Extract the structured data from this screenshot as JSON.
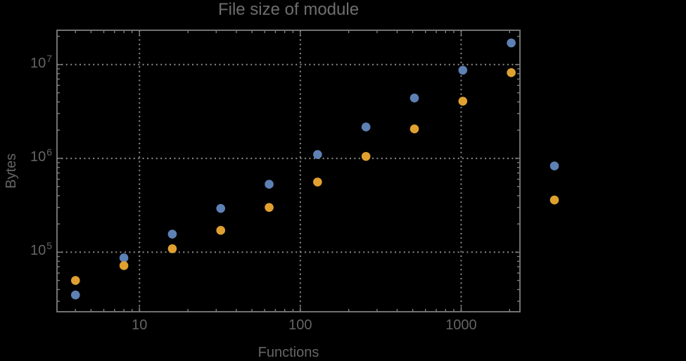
{
  "window": {
    "background": "#000000"
  },
  "chart_data": {
    "type": "scatter",
    "title": "File size of module",
    "xlabel": "Functions",
    "ylabel": "Bytes",
    "x_scale": "log",
    "y_scale": "log",
    "xlim": [
      3.07,
      2320
    ],
    "ylim": [
      23200,
      23200000
    ],
    "grid": true,
    "grid_style": "dotted",
    "legend": false,
    "x_ticks": [
      {
        "value": 10,
        "label": "10"
      },
      {
        "value": 100,
        "label": "100"
      },
      {
        "value": 1000,
        "label": "1000"
      }
    ],
    "y_ticks": [
      {
        "value": 100000,
        "base": "10",
        "exponent": "5"
      },
      {
        "value": 1000000,
        "base": "10",
        "exponent": "6"
      },
      {
        "value": 10000000,
        "base": "10",
        "exponent": "7"
      }
    ],
    "series": [
      {
        "name": "series-1-blue",
        "color": "#5e81b5",
        "points": [
          [
            4,
            35000
          ],
          [
            8,
            87000
          ],
          [
            16,
            156000
          ],
          [
            32,
            293000
          ],
          [
            64,
            530000
          ],
          [
            128,
            1100000
          ],
          [
            256,
            2160000
          ],
          [
            512,
            4400000
          ],
          [
            1024,
            8700000
          ],
          [
            2048,
            17000000
          ],
          [
            3800,
            830000
          ]
        ]
      },
      {
        "name": "series-2-orange",
        "color": "#e0a030",
        "points": [
          [
            4,
            50000
          ],
          [
            8,
            72000
          ],
          [
            16,
            109000
          ],
          [
            32,
            171000
          ],
          [
            64,
            300000
          ],
          [
            128,
            560000
          ],
          [
            256,
            1050000
          ],
          [
            512,
            2060000
          ],
          [
            1024,
            4070000
          ],
          [
            2048,
            8200000
          ],
          [
            3800,
            360000
          ]
        ]
      }
    ],
    "colors": {
      "background": "#000000",
      "frame": "#7e7e7e",
      "gridline": "#8c8c8c",
      "text": "#666666"
    }
  }
}
